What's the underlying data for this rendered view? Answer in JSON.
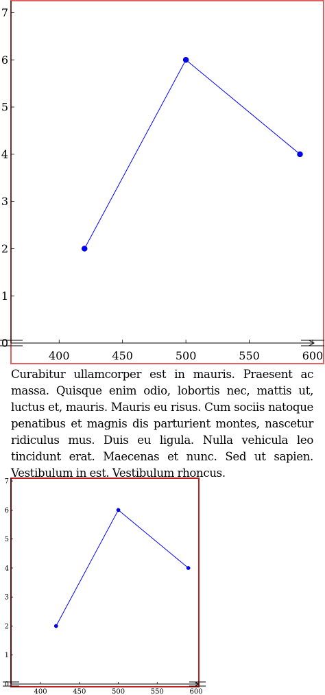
{
  "paragraph": "Curabitur ullamcorper est in mauris. Praesent ac massa. Quisque enim odio, lobortis nec, mattis ut, luctus et, mauris. Mauris eu risus. Cum sociis natoque penatibus et magnis dis parturient montes, nascetur ridiculus mus. Duis eu ligula. Nulla vehicula leo tincidunt erat. Maecenas et nunc. Sed ut sapien. Vestibulum in est. Vestibulum rhoncus.",
  "colors": {
    "series": "#0000ff",
    "frame": "#e06060",
    "frame_dark": "#c02020"
  },
  "chart_data": [
    {
      "type": "line",
      "x": [
        420,
        500,
        590
      ],
      "y": [
        2,
        6,
        4
      ],
      "xticks": [
        400,
        450,
        500,
        550,
        600
      ],
      "yticks": [
        0,
        1,
        2,
        3,
        4,
        5,
        6,
        7
      ],
      "xlim": [
        362,
        600
      ],
      "ylim": [
        0,
        7.05
      ],
      "grid": false,
      "axis_break": true
    },
    {
      "type": "line",
      "x": [
        420,
        500,
        590
      ],
      "y": [
        2,
        6,
        4
      ],
      "xticks": [
        400,
        450,
        500,
        550,
        600
      ],
      "yticks": [
        0,
        1,
        2,
        3,
        4,
        5,
        6,
        7
      ],
      "xlim": [
        362,
        600
      ],
      "ylim": [
        0,
        7.05
      ],
      "grid": false,
      "axis_break": true
    }
  ]
}
